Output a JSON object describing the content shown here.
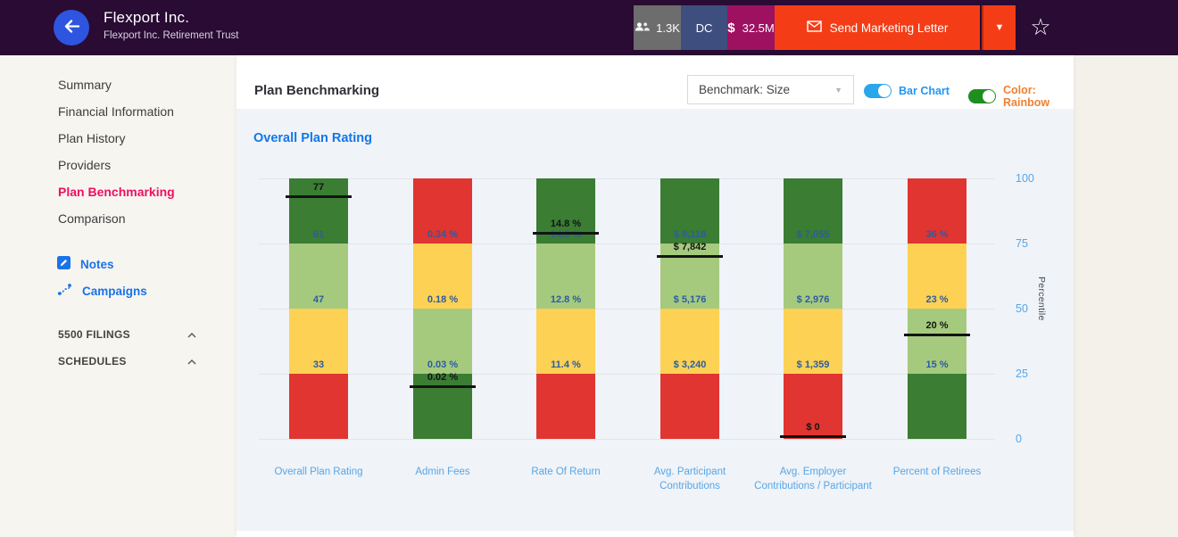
{
  "header": {
    "title": "Flexport Inc.",
    "subtitle": "Flexport Inc. Retirement Trust",
    "participants_badge": "1.3K",
    "plan_type_badge": "DC",
    "assets_badge_currency": "$",
    "assets_badge_amount": "32.5M",
    "send_button_label": "Send Marketing Letter",
    "dropdown_caret": "▼",
    "star_icon_glyph": "☆",
    "colors": {
      "header_bg": "#290b34",
      "back_button_bg": "#2d55e0",
      "participants_badge_bg": "#6d6d6d",
      "plan_type_badge_bg": "#3e4e7e",
      "assets_badge_bg": "#9e1160",
      "send_button_bg": "#f43d17"
    }
  },
  "sidebar": {
    "items": [
      {
        "label": "Summary",
        "active": false
      },
      {
        "label": "Financial Information",
        "active": false
      },
      {
        "label": "Plan History",
        "active": false
      },
      {
        "label": "Providers",
        "active": false
      },
      {
        "label": "Plan Benchmarking",
        "active": true
      },
      {
        "label": "Comparison",
        "active": false
      }
    ],
    "active_color": "#ef1062",
    "links": [
      {
        "label": "Notes",
        "icon": "note-edit-icon"
      },
      {
        "label": "Campaigns",
        "icon": "route-icon"
      }
    ],
    "link_color": "#1a73e8",
    "sections": [
      {
        "label": "5500 FILINGS",
        "state": "expanded-caret-up"
      },
      {
        "label": "SCHEDULES",
        "state": "expanded-caret-up"
      }
    ]
  },
  "main": {
    "title": "Plan Benchmarking",
    "benchmark_select_value": "Benchmark: Size",
    "bar_chart_toggle": {
      "label": "Bar Chart",
      "on": true,
      "switch_color": "#2aa7ea",
      "label_color": "#2196f3"
    },
    "color_toggle": {
      "label": "Color: Rainbow",
      "on": true,
      "switch_color": "#1e8e1e",
      "label_color": "#f08030"
    }
  },
  "chart_data": {
    "type": "bar",
    "title": "Overall Plan Rating",
    "title_color": "#1277e8",
    "ylabel": "Percentile",
    "ylim": [
      0,
      100
    ],
    "yticks": [
      100,
      75,
      50,
      25,
      0
    ],
    "grid": true,
    "legend": "none",
    "axis_tick_color": "#57a6e8",
    "value_label_color": "#2b5ca3",
    "marker_color": "#141414",
    "quartile_colors": {
      "darkgreen": "#3a7d33",
      "lightgreen": "#a5ca7e",
      "yellow": "#fcd154",
      "red": "#e03530"
    },
    "bars": [
      {
        "category": "Overall Plan Rating",
        "quartiles_top_to_bottom": [
          "darkgreen",
          "lightgreen",
          "yellow",
          "red"
        ],
        "percentile_values": {
          "p75": "61",
          "p50": "47",
          "p25": "33"
        },
        "plan_marker": {
          "label": "77",
          "percentile_position": 93
        }
      },
      {
        "category": "Admin Fees",
        "quartiles_top_to_bottom": [
          "red",
          "yellow",
          "lightgreen",
          "darkgreen"
        ],
        "percentile_values": {
          "p75": "0.34 %",
          "p50": "0.18 %",
          "p25": "0.03 %"
        },
        "plan_marker": {
          "label": "0.02 %",
          "percentile_position": 20
        }
      },
      {
        "category": "Rate Of Return",
        "quartiles_top_to_bottom": [
          "darkgreen",
          "lightgreen",
          "yellow",
          "red"
        ],
        "percentile_values": {
          "p75": "14.5 %",
          "p50": "12.8 %",
          "p25": "11.4 %"
        },
        "plan_marker": {
          "label": "14.8 %",
          "percentile_position": 79
        }
      },
      {
        "category": "Avg. Participant Contributions",
        "quartiles_top_to_bottom": [
          "darkgreen",
          "lightgreen",
          "yellow",
          "red"
        ],
        "percentile_values": {
          "p75": "$ 8,118",
          "p50": "$ 5,176",
          "p25": "$ 3,240"
        },
        "plan_marker": {
          "label": "$ 7,842",
          "percentile_position": 70
        }
      },
      {
        "category": "Avg. Employer Contributions / Participant",
        "quartiles_top_to_bottom": [
          "darkgreen",
          "lightgreen",
          "yellow",
          "red"
        ],
        "percentile_values": {
          "p75": "$ 7,055",
          "p50": "$ 2,976",
          "p25": "$ 1,359"
        },
        "plan_marker": {
          "label": "$ 0",
          "percentile_position": 1
        }
      },
      {
        "category": "Percent of Retirees",
        "quartiles_top_to_bottom": [
          "red",
          "yellow",
          "lightgreen",
          "darkgreen"
        ],
        "percentile_values": {
          "p75": "36 %",
          "p50": "23 %",
          "p25": "15 %"
        },
        "plan_marker": {
          "label": "20 %",
          "percentile_position": 40
        }
      }
    ]
  }
}
